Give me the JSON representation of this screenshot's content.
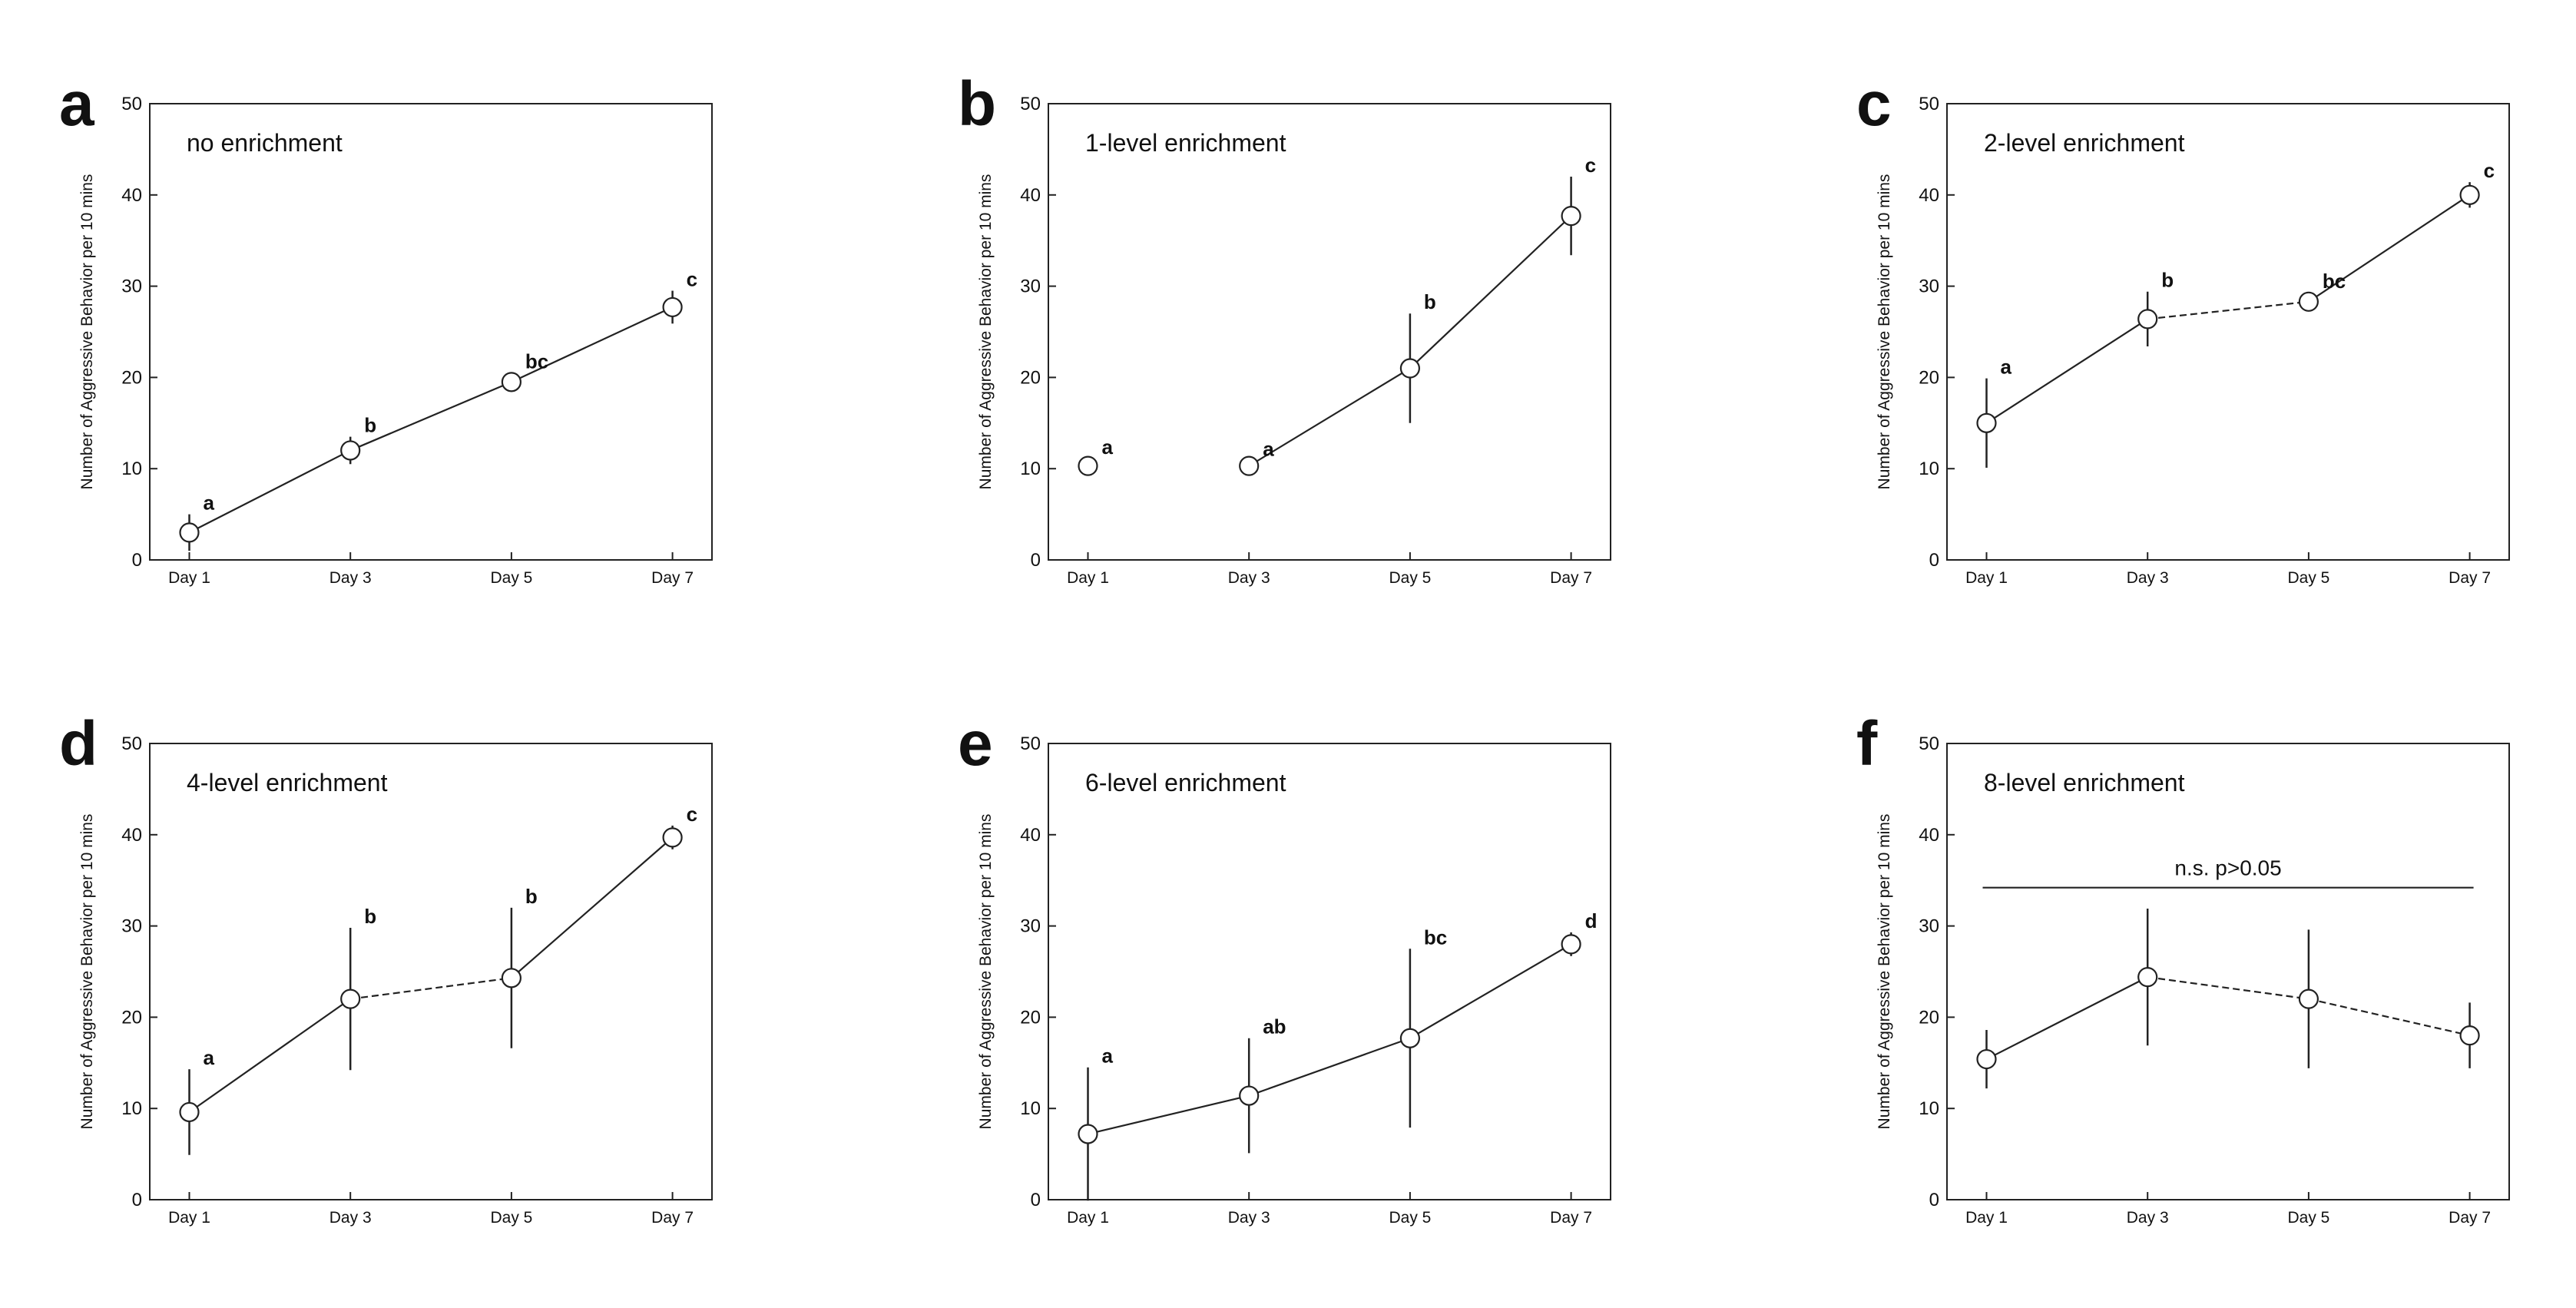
{
  "chart_data": [
    {
      "type": "line",
      "panel_letter": "a",
      "title": "no enrichment",
      "xlabel": "",
      "ylabel": "Number of Aggressive Behavior per 10 mins",
      "ylim": [
        0,
        50
      ],
      "yticks": [
        0,
        10,
        20,
        30,
        40,
        50
      ],
      "categories": [
        "Day 1",
        "Day 3",
        "Day 5",
        "Day 7"
      ],
      "values": [
        3,
        12,
        19.5,
        27.7
      ],
      "errors": [
        2.0,
        1.5,
        1.0,
        1.8
      ],
      "sig_letters": [
        "a",
        "b",
        "bc",
        "c"
      ],
      "line_styles": [
        "solid",
        "solid",
        "solid"
      ],
      "annotation": null
    },
    {
      "type": "line",
      "panel_letter": "b",
      "title": "1-level enrichment",
      "xlabel": "",
      "ylabel": "Number of Aggressive Behavior per 10 mins",
      "ylim": [
        0,
        50
      ],
      "yticks": [
        0,
        10,
        20,
        30,
        40,
        50
      ],
      "categories": [
        "Day 1",
        "Day 3",
        "Day 5",
        "Day 7"
      ],
      "values": [
        10.3,
        10.3,
        21,
        37.7
      ],
      "errors": [
        0.8,
        0.6,
        6.0,
        4.3
      ],
      "sig_letters": [
        "a",
        "a",
        "b",
        "c"
      ],
      "line_styles": [
        "none",
        "solid",
        "solid"
      ],
      "annotation": null
    },
    {
      "type": "line",
      "panel_letter": "c",
      "title": "2-level enrichment",
      "xlabel": "",
      "ylabel": "Number of Aggressive Behavior per 10 mins",
      "ylim": [
        0,
        50
      ],
      "yticks": [
        0,
        10,
        20,
        30,
        40,
        50
      ],
      "categories": [
        "Day 1",
        "Day 3",
        "Day 5",
        "Day 7"
      ],
      "values": [
        15,
        26.4,
        28.3,
        40
      ],
      "errors": [
        4.9,
        3.0,
        1.0,
        1.4
      ],
      "sig_letters": [
        "a",
        "b",
        "bc",
        "c"
      ],
      "line_styles": [
        "solid",
        "dashed",
        "solid"
      ],
      "annotation": null
    },
    {
      "type": "line",
      "panel_letter": "d",
      "title": "4-level enrichment",
      "xlabel": "",
      "ylabel": "Number of Aggressive Behavior per 10 mins",
      "ylim": [
        0,
        50
      ],
      "yticks": [
        0,
        10,
        20,
        30,
        40,
        50
      ],
      "categories": [
        "Day 1",
        "Day 3",
        "Day 5",
        "Day 7"
      ],
      "values": [
        9.6,
        22,
        24.3,
        39.7
      ],
      "errors": [
        4.7,
        7.8,
        7.7,
        1.3
      ],
      "sig_letters": [
        "a",
        "b",
        "b",
        "c"
      ],
      "line_styles": [
        "solid",
        "dashed",
        "solid"
      ],
      "annotation": null
    },
    {
      "type": "line",
      "panel_letter": "e",
      "title": "6-level enrichment",
      "xlabel": "",
      "ylabel": "Number of Aggressive Behavior per 10 mins",
      "ylim": [
        0,
        50
      ],
      "yticks": [
        0,
        10,
        20,
        30,
        40,
        50
      ],
      "categories": [
        "Day 1",
        "Day 3",
        "Day 5",
        "Day 7"
      ],
      "values": [
        7.2,
        11.4,
        17.7,
        28
      ],
      "errors": [
        7.3,
        6.3,
        9.8,
        1.3
      ],
      "sig_letters": [
        "a",
        "ab",
        "bc",
        "d"
      ],
      "line_styles": [
        "solid",
        "solid",
        "solid"
      ],
      "annotation": null
    },
    {
      "type": "line",
      "panel_letter": "f",
      "title": "8-level enrichment",
      "xlabel": "",
      "ylabel": "Number of Aggressive Behavior per 10 mins",
      "ylim": [
        0,
        50
      ],
      "yticks": [
        0,
        10,
        20,
        30,
        40,
        50
      ],
      "categories": [
        "Day 1",
        "Day 3",
        "Day 5",
        "Day 7"
      ],
      "values": [
        15.4,
        24.4,
        22,
        18
      ],
      "errors": [
        3.2,
        7.5,
        7.6,
        3.6
      ],
      "sig_letters": [
        "",
        "",
        "",
        ""
      ],
      "line_styles": [
        "solid",
        "dashed",
        "dashed"
      ],
      "annotation": {
        "text": "n.s.  p>0.05",
        "y": 34.2
      }
    }
  ]
}
